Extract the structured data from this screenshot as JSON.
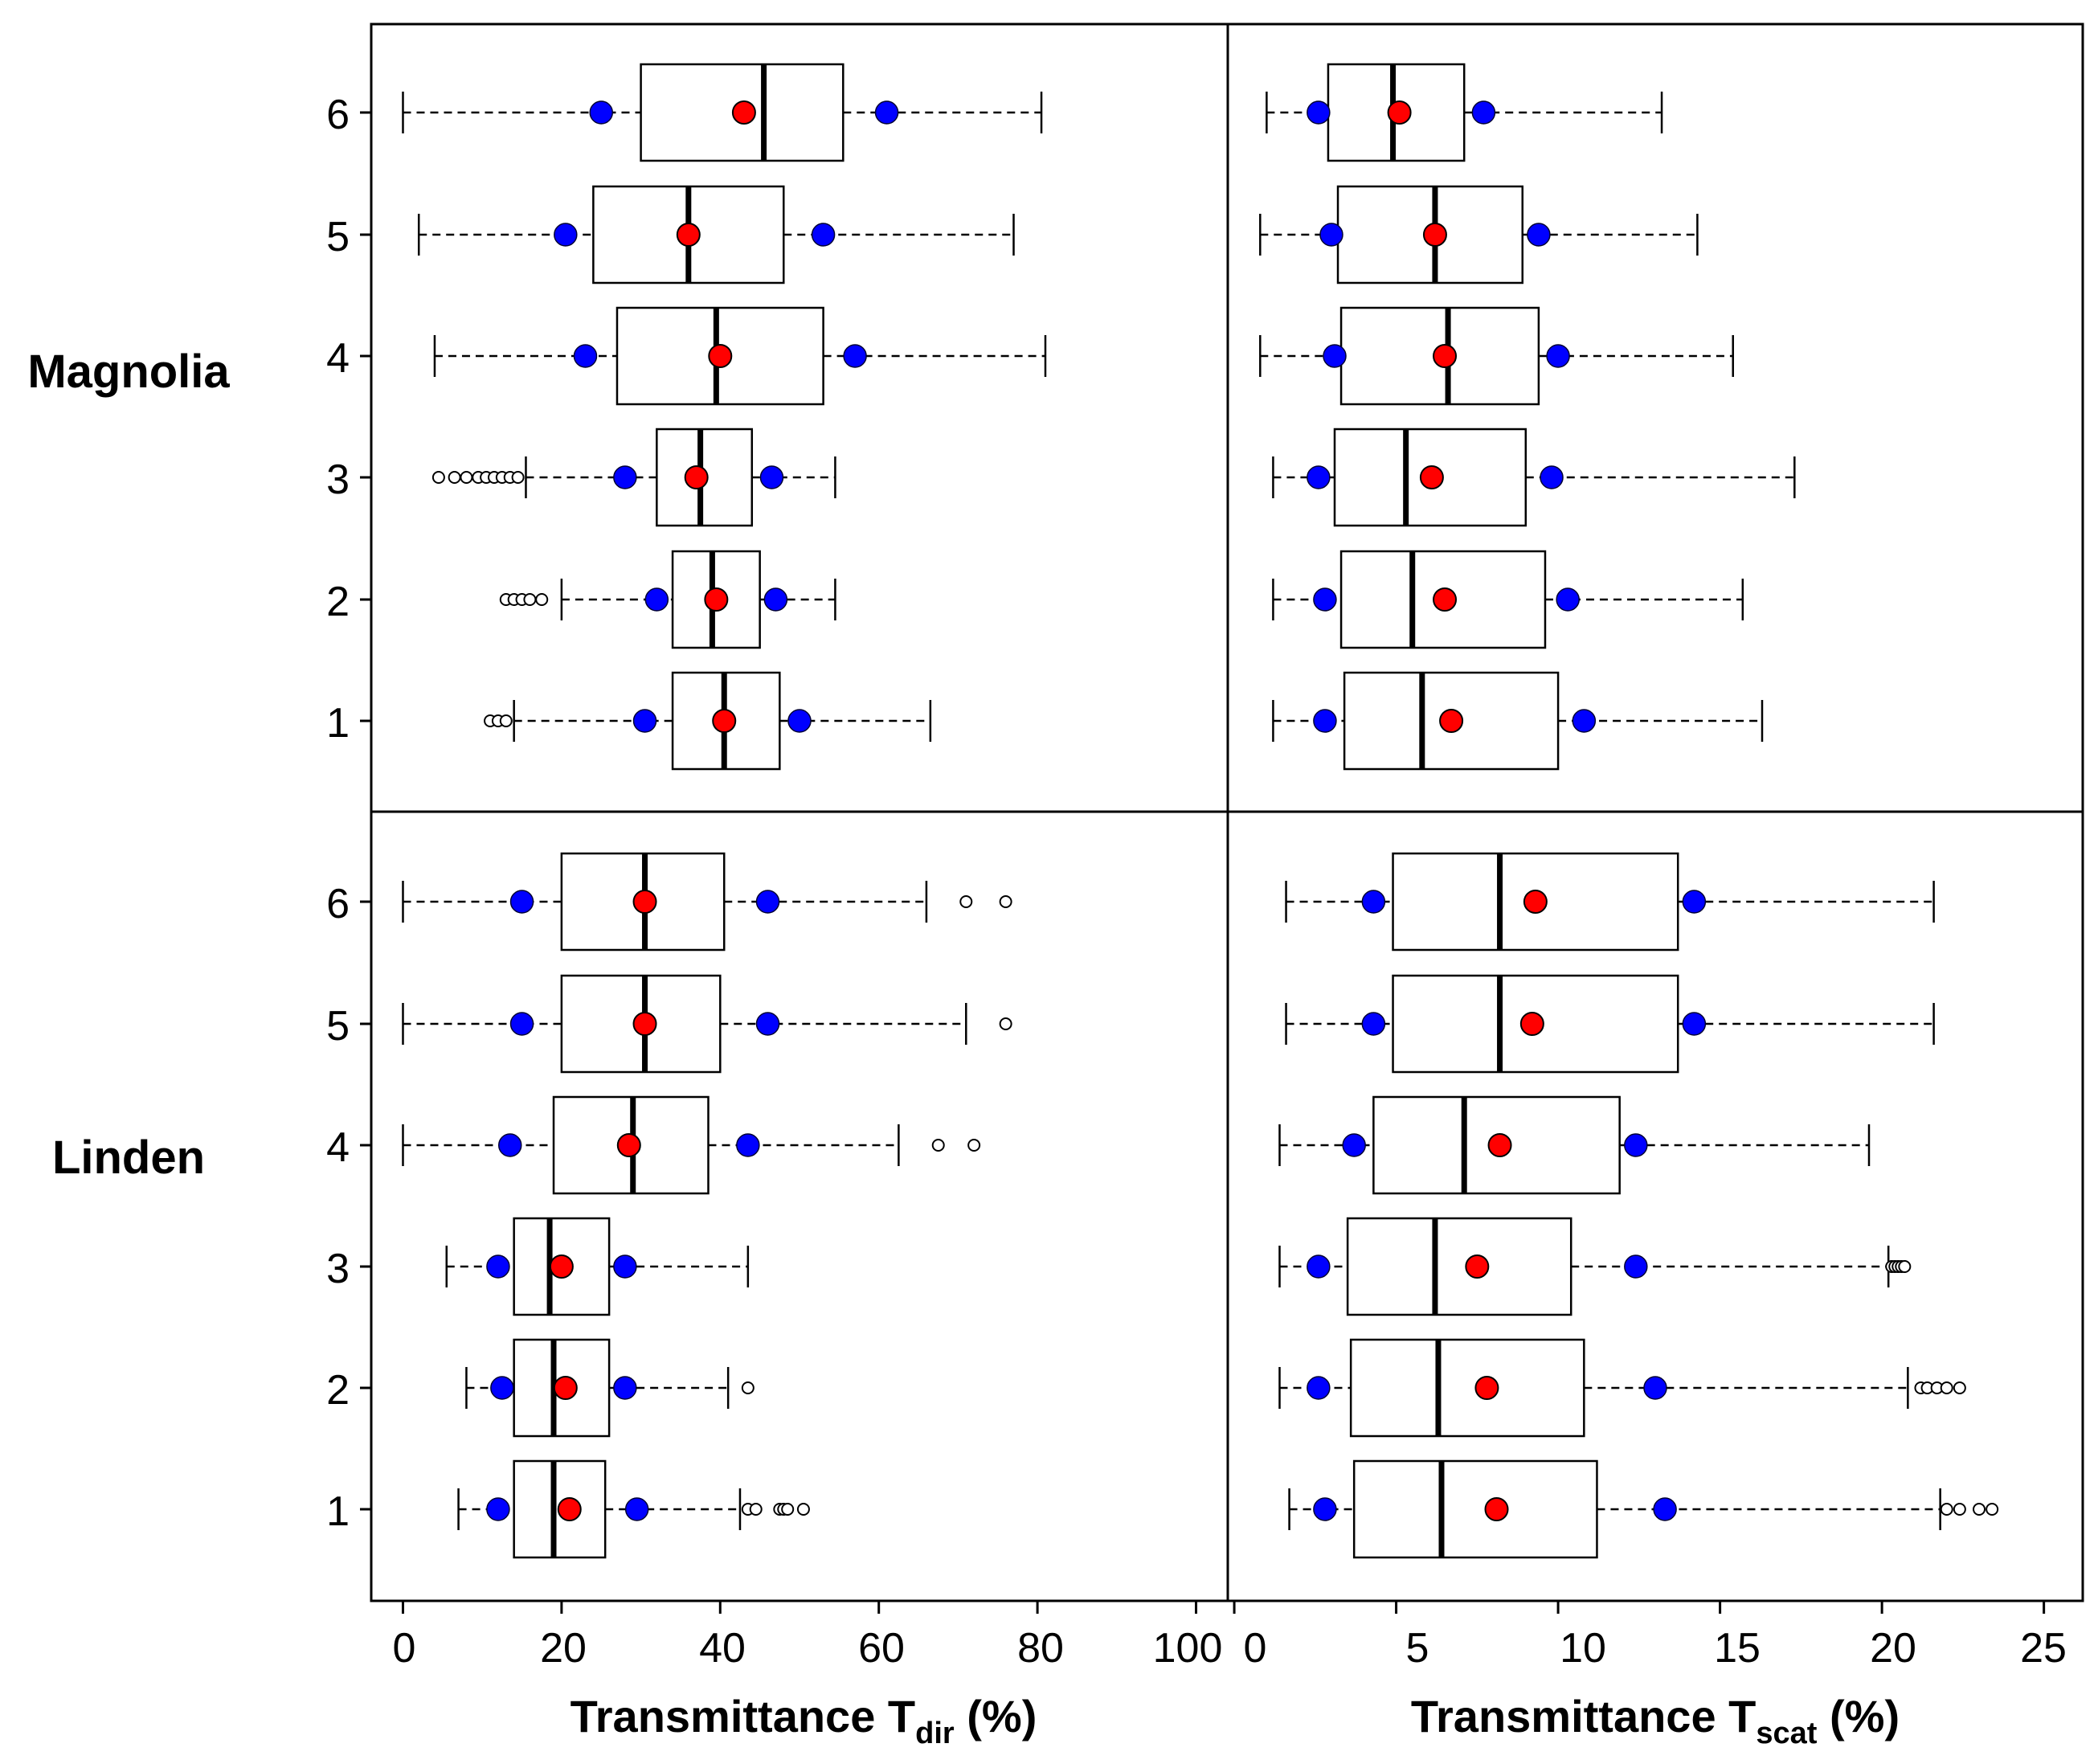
{
  "row_labels": [
    "Magnolia",
    "Linden"
  ],
  "x_axis": {
    "dir": {
      "tdisp": "T",
      "sub": "dir",
      "pre": "Transmittance ",
      "post": " (%)",
      "ticks": [
        "0",
        "20",
        "40",
        "60",
        "80",
        "100"
      ],
      "lim": [
        -4,
        104
      ]
    },
    "scat": {
      "tdisp": "T",
      "sub": "scat",
      "pre": "Transmittance ",
      "post": " (%)",
      "ticks": [
        "0",
        "5",
        "10",
        "15",
        "20",
        "25"
      ],
      "lim": [
        -0.2,
        26.2
      ]
    }
  },
  "y_ticks": [
    "1",
    "2",
    "3",
    "4",
    "5",
    "6"
  ],
  "colors": {
    "box": "#000000",
    "mean": "#ff0000",
    "sd": "#0000ff",
    "outlier": "#000000"
  },
  "chart_data": [
    {
      "type": "boxplot",
      "panel": "Magnolia",
      "xlabel": "Transmittance Tdir (%)",
      "xlim": [
        -4,
        104
      ],
      "categories": [
        "1",
        "2",
        "3",
        "4",
        "5",
        "6"
      ],
      "boxes": [
        {
          "cat": "1",
          "whislo": 0,
          "q1": 30,
          "med": 45.5,
          "q3": 55.5,
          "whishi": 80.5,
          "mean": 43,
          "sd_low": 25,
          "sd_high": 61,
          "outliers": []
        },
        {
          "cat": "2",
          "whislo": 2,
          "q1": 24,
          "med": 36,
          "q3": 48,
          "whishi": 77,
          "mean": 36,
          "sd_low": 20.5,
          "sd_high": 53,
          "outliers": []
        },
        {
          "cat": "3",
          "whislo": 4,
          "q1": 27,
          "med": 39.5,
          "q3": 53,
          "whishi": 81,
          "mean": 40,
          "sd_low": 23,
          "sd_high": 57,
          "outliers": []
        },
        {
          "cat": "4",
          "whislo": 15.5,
          "q1": 32,
          "med": 37.5,
          "q3": 44,
          "whishi": 54.5,
          "mean": 37,
          "sd_low": 28,
          "sd_high": 46.5,
          "outliers": [
            4.5,
            6.5,
            8,
            9.5,
            10.5,
            11.5,
            12.5,
            13.5,
            14.5
          ]
        },
        {
          "cat": "5",
          "whislo": 20,
          "q1": 34,
          "med": 39,
          "q3": 45,
          "whishi": 54.5,
          "mean": 39.5,
          "sd_low": 32,
          "sd_high": 47,
          "outliers": [
            13,
            14,
            15,
            16,
            17.5
          ]
        },
        {
          "cat": "6",
          "whislo": 14,
          "q1": 34,
          "med": 40.5,
          "q3": 47.5,
          "whishi": 66.5,
          "mean": 40.5,
          "sd_low": 30.5,
          "sd_high": 50,
          "outliers": [
            11,
            12,
            13
          ]
        }
      ]
    },
    {
      "type": "boxplot",
      "panel": "Magnolia",
      "xlabel": "Transmittance Tscat (%)",
      "xlim": [
        -0.2,
        26.2
      ],
      "categories": [
        "1",
        "2",
        "3",
        "4",
        "5",
        "6"
      ],
      "boxes": [
        {
          "cat": "1",
          "whislo": 1,
          "q1": 2.9,
          "med": 4.9,
          "q3": 7.1,
          "whishi": 13.2,
          "mean": 5.1,
          "sd_low": 2.6,
          "sd_high": 7.7,
          "outliers": []
        },
        {
          "cat": "2",
          "whislo": 0.8,
          "q1": 3.2,
          "med": 6.2,
          "q3": 8.9,
          "whishi": 14.3,
          "mean": 6.2,
          "sd_low": 3,
          "sd_high": 9.4,
          "outliers": []
        },
        {
          "cat": "3",
          "whislo": 0.8,
          "q1": 3.3,
          "med": 6.6,
          "q3": 9.4,
          "whishi": 15.4,
          "mean": 6.5,
          "sd_low": 3.1,
          "sd_high": 10,
          "outliers": []
        },
        {
          "cat": "4",
          "whislo": 1.2,
          "q1": 3.1,
          "med": 5.3,
          "q3": 9,
          "whishi": 17.3,
          "mean": 6.1,
          "sd_low": 2.6,
          "sd_high": 9.8,
          "outliers": []
        },
        {
          "cat": "5",
          "whislo": 1.2,
          "q1": 3.3,
          "med": 5.5,
          "q3": 9.6,
          "whishi": 15.7,
          "mean": 6.5,
          "sd_low": 2.8,
          "sd_high": 10.3,
          "outliers": []
        },
        {
          "cat": "6",
          "whislo": 1.2,
          "q1": 3.4,
          "med": 5.8,
          "q3": 10,
          "whishi": 16.3,
          "mean": 6.7,
          "sd_low": 2.8,
          "sd_high": 10.8,
          "outliers": []
        }
      ]
    },
    {
      "type": "boxplot",
      "panel": "Linden",
      "xlabel": "Transmittance Tdir (%)",
      "xlim": [
        -4,
        104
      ],
      "categories": [
        "1",
        "2",
        "3",
        "4",
        "5",
        "6"
      ],
      "boxes": [
        {
          "cat": "1",
          "whislo": 0,
          "q1": 20,
          "med": 30.5,
          "q3": 40.5,
          "whishi": 66,
          "mean": 30.5,
          "sd_low": 15,
          "sd_high": 46,
          "outliers": [
            71,
            76
          ]
        },
        {
          "cat": "2",
          "whislo": 0,
          "q1": 20,
          "med": 30.5,
          "q3": 40,
          "whishi": 71,
          "mean": 30.5,
          "sd_low": 15,
          "sd_high": 46,
          "outliers": [
            76
          ]
        },
        {
          "cat": "3",
          "whislo": 0,
          "q1": 19,
          "med": 29,
          "q3": 38.5,
          "whishi": 62.5,
          "mean": 28.5,
          "sd_low": 13.5,
          "sd_high": 43.5,
          "outliers": [
            67.5,
            72
          ]
        },
        {
          "cat": "4",
          "whislo": 5.5,
          "q1": 14,
          "med": 18.5,
          "q3": 26,
          "whishi": 43.5,
          "mean": 20,
          "sd_low": 12,
          "sd_high": 28,
          "outliers": []
        },
        {
          "cat": "5",
          "whislo": 8,
          "q1": 14,
          "med": 19,
          "q3": 26,
          "whishi": 41,
          "mean": 20.5,
          "sd_low": 12.5,
          "sd_high": 28,
          "outliers": [
            43.5
          ]
        },
        {
          "cat": "6",
          "whislo": 7,
          "q1": 14,
          "med": 19,
          "q3": 25.5,
          "whishi": 42.5,
          "mean": 21,
          "sd_low": 12,
          "sd_high": 29.5,
          "outliers": [
            43.5,
            44.5,
            47.5,
            48,
            48.5,
            50.5
          ]
        }
      ]
    },
    {
      "type": "boxplot",
      "panel": "Linden",
      "xlabel": "Transmittance Tscat (%)",
      "xlim": [
        -0.2,
        26.2
      ],
      "categories": [
        "1",
        "2",
        "3",
        "4",
        "5",
        "6"
      ],
      "boxes": [
        {
          "cat": "1",
          "whislo": 1.6,
          "q1": 4.9,
          "med": 8.2,
          "q3": 13.7,
          "whishi": 21.6,
          "mean": 9.3,
          "sd_low": 4.3,
          "sd_high": 14.2,
          "outliers": []
        },
        {
          "cat": "2",
          "whislo": 1.6,
          "q1": 4.9,
          "med": 8.2,
          "q3": 13.7,
          "whishi": 21.6,
          "mean": 9.2,
          "sd_low": 4.3,
          "sd_high": 14.2,
          "outliers": []
        },
        {
          "cat": "3",
          "whislo": 1.4,
          "q1": 4.3,
          "med": 7.1,
          "q3": 11.9,
          "whishi": 19.6,
          "mean": 8.2,
          "sd_low": 3.7,
          "sd_high": 12.4,
          "outliers": []
        },
        {
          "cat": "4",
          "whislo": 1.4,
          "q1": 3.5,
          "med": 6.2,
          "q3": 10.4,
          "whishi": 20.2,
          "mean": 7.5,
          "sd_low": 2.6,
          "sd_high": 12.4,
          "outliers": [
            20.3,
            20.4,
            20.5,
            20.6,
            20.7
          ]
        },
        {
          "cat": "5",
          "whislo": 1.4,
          "q1": 3.6,
          "med": 6.3,
          "q3": 10.8,
          "whishi": 20.8,
          "mean": 7.8,
          "sd_low": 2.6,
          "sd_high": 13,
          "outliers": [
            21.2,
            21.4,
            21.7,
            22,
            22.4
          ]
        },
        {
          "cat": "6",
          "whislo": 1.7,
          "q1": 3.7,
          "med": 6.4,
          "q3": 11.2,
          "whishi": 21.8,
          "mean": 8.1,
          "sd_low": 2.8,
          "sd_high": 13.3,
          "outliers": [
            22,
            22.4,
            23,
            23.4
          ]
        }
      ]
    }
  ]
}
